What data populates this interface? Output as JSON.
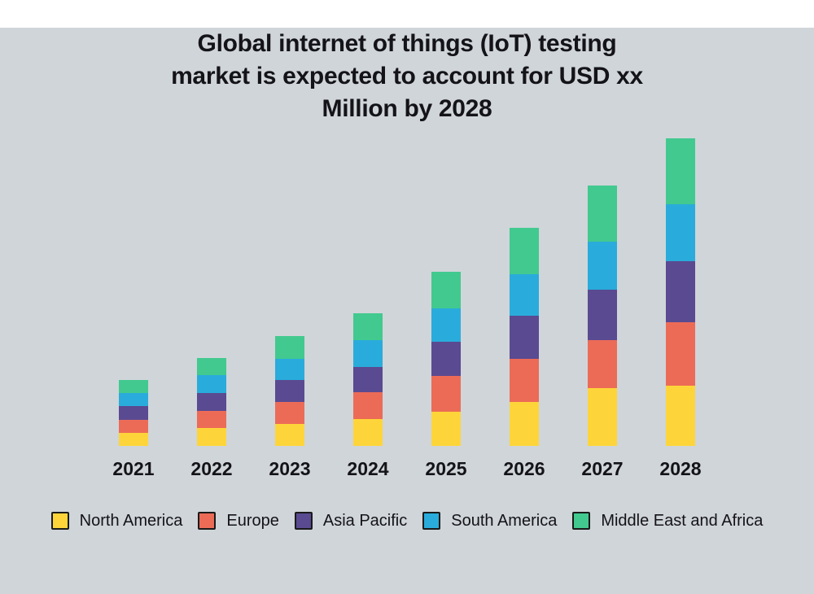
{
  "page": {
    "background_color": "#D0D5D9",
    "text_color": "#131318"
  },
  "title": {
    "lines": [
      "Global internet of things (IoT) testing",
      "market is expected to account for USD xx",
      "Million by 2028"
    ]
  },
  "chart_data": {
    "type": "bar",
    "stacked": true,
    "orientation": "vertical",
    "title": "Global internet of things (IoT) testing market is expected to account for USD xx Million by 2028",
    "xlabel": "",
    "ylabel": "",
    "categories": [
      "2021",
      "2022",
      "2023",
      "2024",
      "2025",
      "2026",
      "2027",
      "2028"
    ],
    "series": [
      {
        "name": "North America",
        "color": "#FDD53A",
        "values": [
          16,
          22,
          27,
          33,
          42,
          54,
          71,
          74
        ]
      },
      {
        "name": "Europe",
        "color": "#EC6B57",
        "values": [
          16,
          21,
          27,
          33,
          44,
          53,
          59,
          78
        ]
      },
      {
        "name": "Asia Pacific",
        "color": "#5A4A91",
        "values": [
          17,
          22,
          27,
          31,
          42,
          53,
          62,
          75
        ]
      },
      {
        "name": "South America",
        "color": "#29ACDB",
        "values": [
          16,
          22,
          26,
          33,
          41,
          51,
          59,
          70
        ]
      },
      {
        "name": "Middle East and Africa",
        "color": "#42C98F",
        "values": [
          16,
          21,
          28,
          33,
          45,
          57,
          69,
          81
        ]
      }
    ],
    "stack_totals": [
      81,
      108,
      135,
      163,
      214,
      268,
      320,
      378
    ],
    "value_axis": {
      "visible": false,
      "note": "no value axis, ticks or gridlines shown; values are relative units read from bar heights (1 unit = 1px)",
      "ylim": [
        0,
        400
      ]
    },
    "grid": false,
    "legend_position": "bottom",
    "legend_swatch_border": "#1A1A1A"
  }
}
